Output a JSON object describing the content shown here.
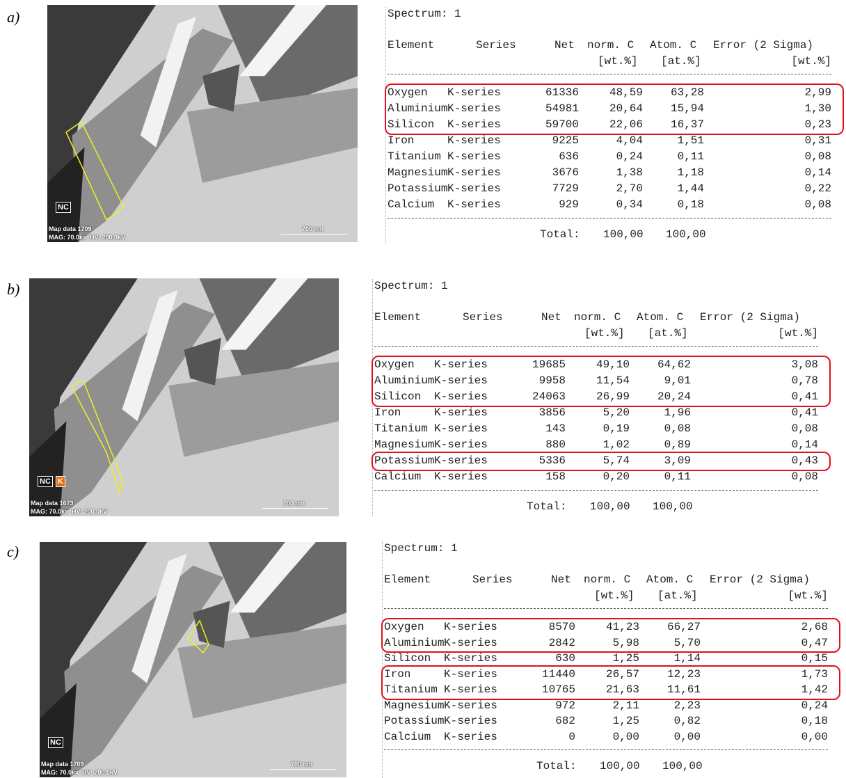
{
  "panels": [
    {
      "label": "a)",
      "image": {
        "tags": [
          "NC"
        ],
        "map": "Map data 1709",
        "mag": "MAG: 70.0kx  HV: 200.0kV",
        "scale": "700 nm"
      },
      "spectrum": "Spectrum: 1",
      "header": [
        "Element",
        "Series",
        "Net",
        "norm. C",
        "Atom. C",
        "Error (2 Sigma)"
      ],
      "units": [
        "[wt.%]",
        "[at.%]",
        "[wt.%]"
      ],
      "rows": [
        [
          "Oxygen",
          "K-series",
          "61336",
          "48,59",
          "63,28",
          "2,99"
        ],
        [
          "Aluminium",
          "K-series",
          "54981",
          "20,64",
          "15,94",
          "1,30"
        ],
        [
          "Silicon",
          "K-series",
          "59700",
          "22,06",
          "16,37",
          "0,23"
        ],
        [
          "Iron",
          "K-series",
          "9225",
          "4,04",
          "1,51",
          "0,31"
        ],
        [
          "Titanium",
          "K-series",
          "636",
          "0,24",
          "0,11",
          "0,08"
        ],
        [
          "Magnesium",
          "K-series",
          "3676",
          "1,38",
          "1,18",
          "0,14"
        ],
        [
          "Potassium",
          "K-series",
          "7729",
          "2,70",
          "1,44",
          "0,22"
        ],
        [
          "Calcium",
          "K-series",
          "929",
          "0,34",
          "0,18",
          "0,08"
        ]
      ],
      "highlight": [
        [
          0,
          2
        ]
      ],
      "total": [
        "Total:",
        "100,00",
        "100,00"
      ]
    },
    {
      "label": "b)",
      "image": {
        "tags": [
          "NC",
          "K"
        ],
        "map": "Map data 1673",
        "mag": "MAG: 70.0kx  HV: 200.0kV",
        "scale": "700 nm"
      },
      "spectrum": "Spectrum: 1",
      "header": [
        "Element",
        "Series",
        "Net",
        "norm. C",
        "Atom. C",
        "Error (2 Sigma)"
      ],
      "units": [
        "[wt.%]",
        "[at.%]",
        "[wt.%]"
      ],
      "rows": [
        [
          "Oxygen",
          "K-series",
          "19685",
          "49,10",
          "64,62",
          "3,08"
        ],
        [
          "Aluminium",
          "K-series",
          "9958",
          "11,54",
          "9,01",
          "0,78"
        ],
        [
          "Silicon",
          "K-series",
          "24063",
          "26,99",
          "20,24",
          "0,41"
        ],
        [
          "Iron",
          "K-series",
          "3856",
          "5,20",
          "1,96",
          "0,41"
        ],
        [
          "Titanium",
          "K-series",
          "143",
          "0,19",
          "0,08",
          "0,08"
        ],
        [
          "Magnesium",
          "K-series",
          "880",
          "1,02",
          "0,89",
          "0,14"
        ],
        [
          "Potassium",
          "K-series",
          "5336",
          "5,74",
          "3,09",
          "0,43"
        ],
        [
          "Calcium",
          "K-series",
          "158",
          "0,20",
          "0,11",
          "0,08"
        ]
      ],
      "highlight": [
        [
          0,
          2
        ],
        [
          6,
          6
        ]
      ],
      "total": [
        "Total:",
        "100,00",
        "100,00"
      ]
    },
    {
      "label": "c)",
      "image": {
        "tags": [
          "NC"
        ],
        "map": "Map data 1709",
        "mag": "MAG: 70.0kx  HV: 200.0kV",
        "scale": "700 nm"
      },
      "spectrum": "Spectrum: 1",
      "header": [
        "Element",
        "Series",
        "Net",
        "norm. C",
        "Atom. C",
        "Error (2 Sigma)"
      ],
      "units": [
        "[wt.%]",
        "[at.%]",
        "[wt.%]"
      ],
      "rows": [
        [
          "Oxygen",
          "K-series",
          "8570",
          "41,23",
          "66,27",
          "2,68"
        ],
        [
          "Aluminium",
          "K-series",
          "2842",
          "5,98",
          "5,70",
          "0,47"
        ],
        [
          "Silicon",
          "K-series",
          "630",
          "1,25",
          "1,14",
          "0,15"
        ],
        [
          "Iron",
          "K-series",
          "11440",
          "26,57",
          "12,23",
          "1,73"
        ],
        [
          "Titanium",
          "K-series",
          "10765",
          "21,63",
          "11,61",
          "1,42"
        ],
        [
          "Magnesium",
          "K-series",
          "972",
          "2,11",
          "2,23",
          "0,24"
        ],
        [
          "Potassium",
          "K-series",
          "682",
          "1,25",
          "0,82",
          "0,18"
        ],
        [
          "Calcium",
          "K-series",
          "0",
          "0,00",
          "0,00",
          "0,00"
        ]
      ],
      "highlight": [
        [
          0,
          1
        ],
        [
          3,
          4
        ]
      ],
      "total": [
        "Total:",
        "100,00",
        "100,00"
      ]
    }
  ]
}
